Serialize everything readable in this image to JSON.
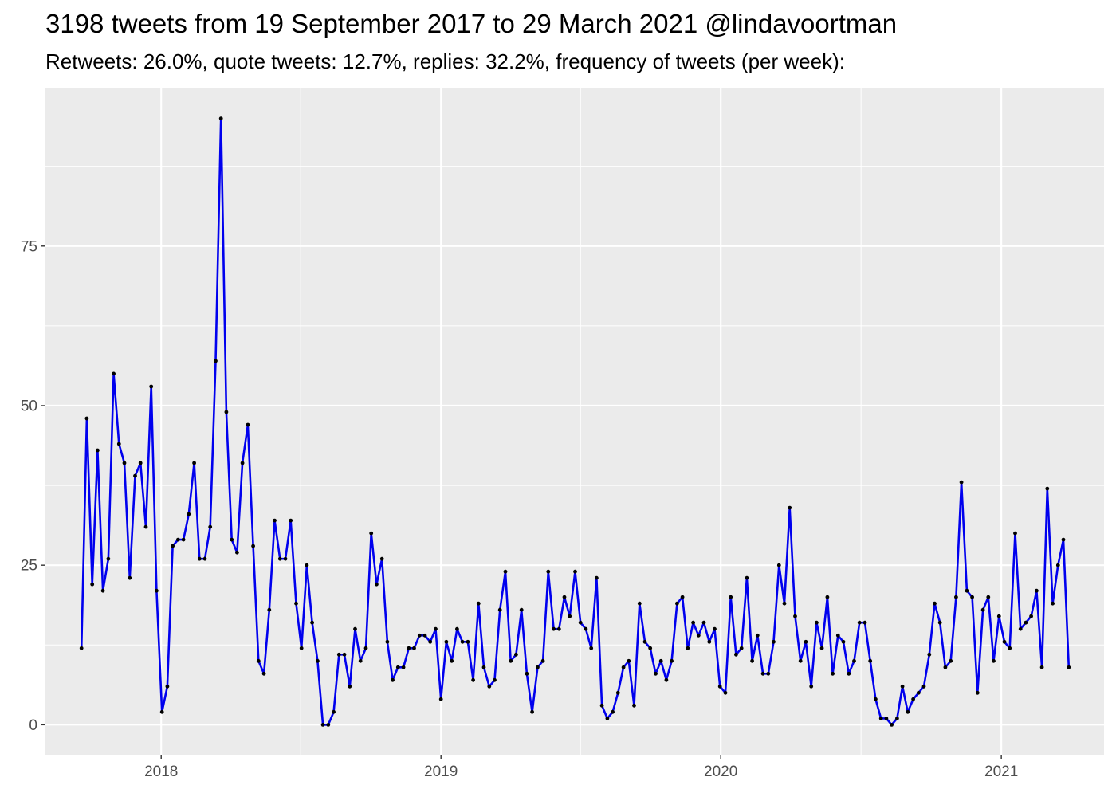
{
  "chart_data": {
    "type": "line",
    "title": "3198 tweets from 19 September 2017 to 29 March 2021 @lindavoortman",
    "subtitle": "Retweets: 26.0%, quote tweets: 12.7%, replies: 32.2%, frequency of tweets (per week):",
    "xlabel": "",
    "ylabel": "",
    "x_ticks": [
      "2018",
      "2019",
      "2020",
      "2021"
    ],
    "y_ticks": [
      0,
      25,
      50,
      75
    ],
    "xlim": [
      "2017-08-03",
      "2021-05-15"
    ],
    "ylim": [
      -4.7,
      99.7
    ],
    "grid": true,
    "line_color": "#0000ee",
    "point_color": "#000000",
    "panel_color": "#ebebeb",
    "start_date": "2017-09-19",
    "interval_days": 7,
    "values": [
      12,
      48,
      22,
      43,
      21,
      26,
      55,
      44,
      41,
      23,
      39,
      41,
      31,
      53,
      21,
      2,
      6,
      28,
      29,
      29,
      33,
      41,
      26,
      26,
      31,
      57,
      95,
      49,
      29,
      27,
      41,
      47,
      28,
      10,
      8,
      18,
      32,
      26,
      26,
      32,
      19,
      12,
      25,
      16,
      10,
      0,
      0,
      2,
      11,
      11,
      6,
      15,
      10,
      12,
      30,
      22,
      26,
      13,
      7,
      9,
      9,
      12,
      12,
      14,
      14,
      13,
      15,
      4,
      13,
      10,
      15,
      13,
      13,
      7,
      19,
      9,
      6,
      7,
      18,
      24,
      10,
      11,
      18,
      8,
      2,
      9,
      10,
      24,
      15,
      15,
      20,
      17,
      24,
      16,
      15,
      12,
      23,
      3,
      1,
      2,
      5,
      9,
      10,
      3,
      19,
      13,
      12,
      8,
      10,
      7,
      10,
      19,
      20,
      12,
      16,
      14,
      16,
      13,
      15,
      6,
      5,
      20,
      11,
      12,
      23,
      10,
      14,
      8,
      8,
      13,
      25,
      19,
      34,
      17,
      10,
      13,
      6,
      16,
      12,
      20,
      8,
      14,
      13,
      8,
      10,
      16,
      16,
      10,
      4,
      1,
      1,
      0,
      1,
      6,
      2,
      4,
      5,
      6,
      11,
      19,
      16,
      9,
      10,
      20,
      38,
      21,
      20,
      5,
      18,
      20,
      10,
      17,
      13,
      12,
      30,
      15,
      16,
      17,
      21,
      9,
      37,
      19,
      25,
      29,
      9
    ]
  }
}
